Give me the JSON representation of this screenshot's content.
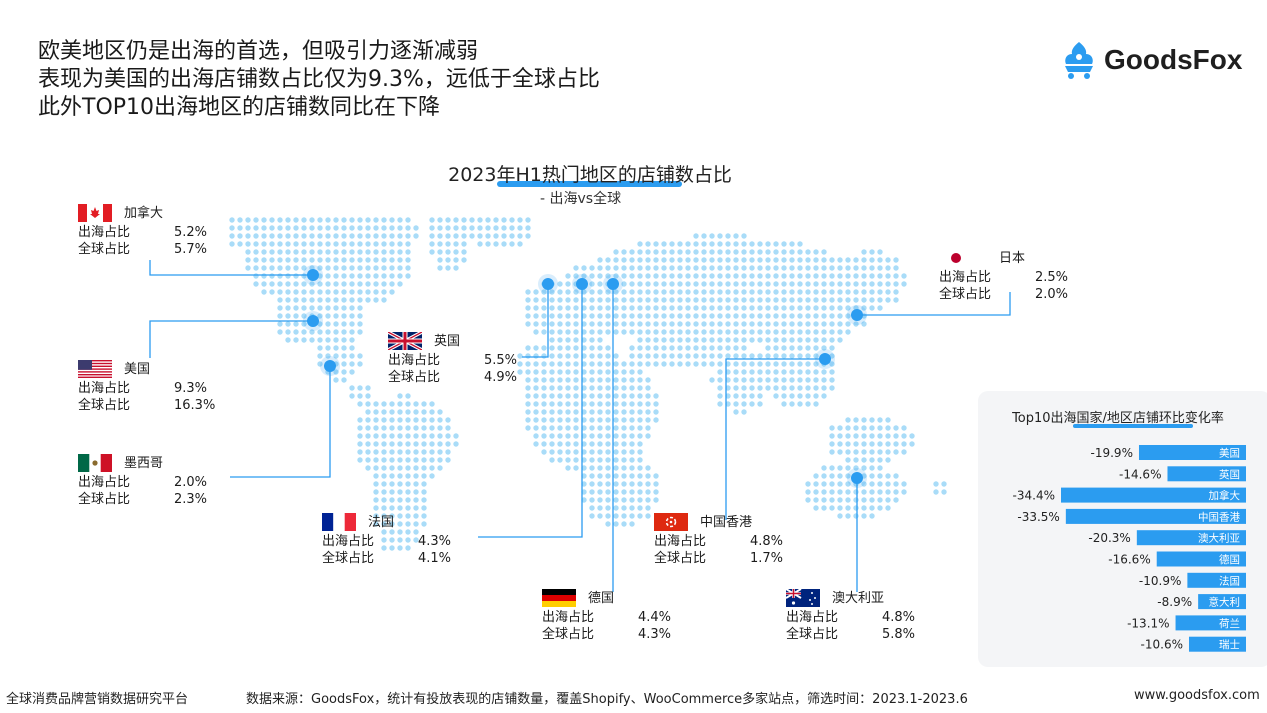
{
  "headline": {
    "line1": "欧美地区仍是出海的首选，但吸引力逐渐减弱",
    "line2": "表现为美国的出海店铺数占比仅为9.3%，远低于全球占比",
    "line3": "此外TOP10出海地区的店铺数同比在下降"
  },
  "logo": {
    "text": "GoodsFox",
    "icon": "fox-cart-icon",
    "color": "#2b9cf0"
  },
  "map": {
    "title": "2023年H1热门地区的店铺数占比",
    "subtitle": "- 出海vs全球",
    "dot_color": "#a9dcf8",
    "marker_color": "#2b9cf0"
  },
  "labels": {
    "overseas": "出海占比",
    "global": "全球占比"
  },
  "regions": [
    {
      "id": "canada",
      "name": "加拿大",
      "overseas": "5.2%",
      "global": "5.7%",
      "flag": "canada-flag"
    },
    {
      "id": "usa",
      "name": "美国",
      "overseas": "9.3%",
      "global": "16.3%",
      "flag": "usa-flag"
    },
    {
      "id": "mexico",
      "name": "墨西哥",
      "overseas": "2.0%",
      "global": "2.3%",
      "flag": "mexico-flag"
    },
    {
      "id": "uk",
      "name": "英国",
      "overseas": "5.5%",
      "global": "4.9%",
      "flag": "uk-flag"
    },
    {
      "id": "france",
      "name": "法国",
      "overseas": "4.3%",
      "global": "4.1%",
      "flag": "france-flag"
    },
    {
      "id": "germany",
      "name": "德国",
      "overseas": "4.4%",
      "global": "4.3%",
      "flag": "germany-flag"
    },
    {
      "id": "hongkong",
      "name": "中国香港",
      "overseas": "4.8%",
      "global": "1.7%",
      "flag": "hongkong-flag"
    },
    {
      "id": "australia",
      "name": "澳大利亚",
      "overseas": "4.8%",
      "global": "5.8%",
      "flag": "australia-flag"
    },
    {
      "id": "japan",
      "name": "日本",
      "overseas": "2.5%",
      "global": "2.0%",
      "flag": "japan-flag"
    }
  ],
  "chart_data": {
    "type": "bar",
    "orientation": "horizontal",
    "title": "Top10出海国家/地区店铺环比变化率",
    "categories": [
      "美国",
      "英国",
      "加拿大",
      "中国香港",
      "澳大利亚",
      "德国",
      "法国",
      "意大利",
      "荷兰",
      "瑞士"
    ],
    "values": [
      -19.9,
      -14.6,
      -34.4,
      -33.5,
      -20.3,
      -16.6,
      -10.9,
      -8.9,
      -13.1,
      -10.6
    ],
    "value_labels": [
      "-19.9%",
      "-14.6%",
      "-34.4%",
      "-33.5%",
      "-20.3%",
      "-16.6%",
      "-10.9%",
      "-8.9%",
      "-13.1%",
      "-10.6%"
    ],
    "bar_color": "#2b9cf0",
    "unit": "%"
  },
  "footer": {
    "left": "全球消费品牌营销数据研究平台",
    "source": "数据来源：GoodsFox，统计有投放表现的店铺数量，覆盖Shopify、WooCommerce多家站点，筛选时间：2023.1-2023.6",
    "website": "www.goodsfox.com"
  }
}
